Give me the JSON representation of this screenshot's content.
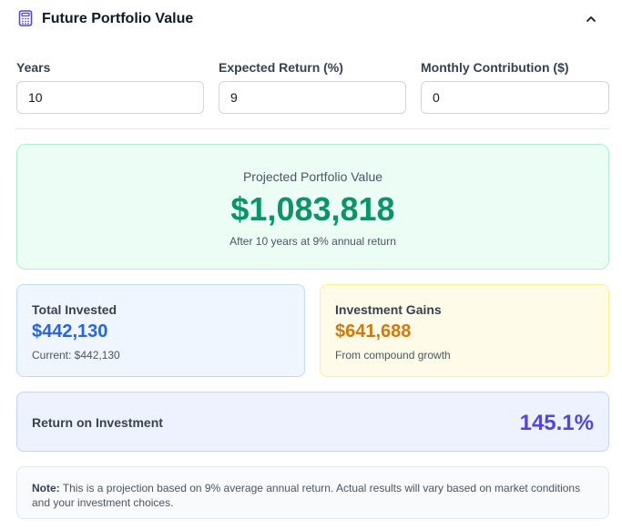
{
  "header": {
    "title": "Future Portfolio Value",
    "icon": "calculator-icon",
    "collapse_icon": "chevron-up-icon"
  },
  "inputs": [
    {
      "label": "Years",
      "value": "10"
    },
    {
      "label": "Expected Return (%)",
      "value": "9"
    },
    {
      "label": "Monthly Contribution ($)",
      "value": "0"
    }
  ],
  "projection": {
    "label": "Projected Portfolio Value",
    "value": "$1,083,818",
    "subtitle": "After 10 years at 9% annual return"
  },
  "invested": {
    "label": "Total Invested",
    "value": "$442,130",
    "subtitle": "Current: $442,130"
  },
  "gains": {
    "label": "Investment Gains",
    "value": "$641,688",
    "subtitle": "From compound growth"
  },
  "roi": {
    "label": "Return on Investment",
    "value": "145.1%"
  },
  "note": {
    "prefix": "Note:",
    "text": " This is a projection based on 9% average annual return. Actual results will vary based on market conditions and your investment choices."
  },
  "colors": {
    "accent_purple": "#4f46e5",
    "projection_green": "#059669",
    "invested_blue": "#2563eb",
    "gains_orange": "#d97706"
  }
}
